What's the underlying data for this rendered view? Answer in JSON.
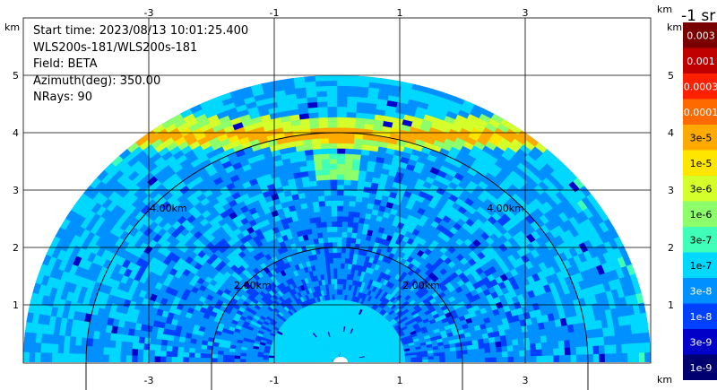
{
  "header": {
    "start_time": "Start time: 2023/08/13 10:01:25.400",
    "station": "WLS200s-181/WLS200s-181",
    "field": "Field: BETA",
    "azimuth": "Azimuth(deg): 350.00",
    "nrays": "NRays: 90"
  },
  "chart_data": {
    "type": "heatmap",
    "projection": "rhi-semicircle",
    "x_axis": {
      "unit_label": "km",
      "range": [
        -5,
        5
      ],
      "ticks": [
        -3,
        -1,
        1,
        3
      ],
      "tick_labels": [
        "-3",
        "-1",
        "1",
        "3"
      ]
    },
    "y_axis": {
      "unit_label": "km",
      "range": [
        0,
        5.6
      ],
      "ticks": [
        1,
        2,
        3,
        4,
        5
      ],
      "tick_labels": [
        "1",
        "2",
        "3",
        "4",
        "5"
      ]
    },
    "max_range_km": 5.0,
    "grid": true,
    "range_rings": [
      {
        "radius_km": 2.0,
        "label": "2.00km"
      },
      {
        "radius_km": 4.0,
        "label": "4.00km"
      }
    ],
    "features": {
      "cloud_layer_height_km": 4.0,
      "zenith_plume_height_km": 3.4
    },
    "colorbar": {
      "title": "-1 sr",
      "placement": "right",
      "labels": [
        "0.003",
        "0.001",
        "0.0003",
        "0.0001",
        "3e-5",
        "1e-5",
        "3e-6",
        "1e-6",
        "3e-7",
        "1e-7",
        "3e-8",
        "1e-8",
        "3e-9",
        "1e-9"
      ],
      "colors": [
        "#7a0000",
        "#c00000",
        "#ff2000",
        "#ff6a00",
        "#ffaa00",
        "#ffe600",
        "#d4ff2a",
        "#8cff6a",
        "#40ffb8",
        "#00d8ff",
        "#0090ff",
        "#0040ff",
        "#0000c8",
        "#000070"
      ]
    },
    "colors": {
      "grid": "#000000",
      "ring": "#000000",
      "background_field": "#2e7fe8"
    }
  }
}
